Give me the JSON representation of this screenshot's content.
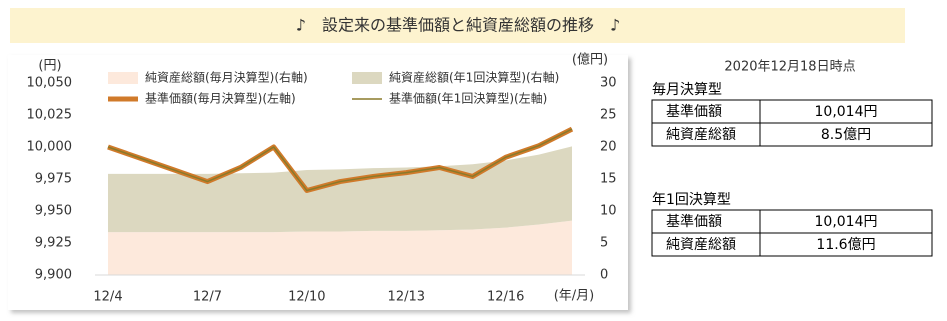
{
  "chart_data": {
    "type": "line",
    "title": "♪　設定来の基準価額と純資産総額の推移　♪",
    "categories": [
      "12/4",
      null,
      null,
      "12/7",
      null,
      null,
      "12/10",
      null,
      null,
      "12/13",
      null,
      null,
      "12/16",
      null,
      null
    ],
    "xlabel": "(年/月)",
    "ylabel": "(円)",
    "y2label": "(億円)",
    "ylim": [
      9900,
      10050
    ],
    "yticks": [
      {
        "value": 9900,
        "label": "9,900"
      },
      {
        "value": 9925,
        "label": "9,925"
      },
      {
        "value": 9950,
        "label": "9,950"
      },
      {
        "value": 9975,
        "label": "9,975"
      },
      {
        "value": 10000,
        "label": "10,000"
      },
      {
        "value": 10025,
        "label": "10,025"
      },
      {
        "value": 10050,
        "label": "10,050"
      }
    ],
    "y2lim": [
      0,
      30
    ],
    "y2ticks": [
      0,
      5,
      10,
      15,
      20,
      25,
      30
    ],
    "stacked_areas": true,
    "grid": false,
    "series": [
      {
        "name": "純資産総額(毎月決算型)(右軸)",
        "type": "area",
        "axis": "y2",
        "color": "#fde9dc",
        "values": [
          6.7,
          6.7,
          6.7,
          6.7,
          6.7,
          6.7,
          6.8,
          6.8,
          6.9,
          6.9,
          7.0,
          7.1,
          7.4,
          7.9,
          8.5
        ]
      },
      {
        "name": "純資産総額(年1回決算型)(右軸)",
        "type": "area",
        "axis": "y2",
        "color": "#dcd8c0",
        "values": [
          9.1,
          9.1,
          9.1,
          9.1,
          9.2,
          9.3,
          9.6,
          9.7,
          9.8,
          9.9,
          10.0,
          10.2,
          10.5,
          10.9,
          11.6
        ]
      },
      {
        "name": "基準価額(毎月決算型)(左軸)",
        "type": "line",
        "color": "#d07a2a",
        "width": 5,
        "values": [
          10000,
          9991,
          9982,
          9973,
          9984,
          10000,
          9966,
          9973,
          9977,
          9980,
          9984,
          9977,
          9992,
          10001,
          10014
        ]
      },
      {
        "name": "基準価額(年1回決算型)(左軸)",
        "type": "line",
        "color": "#8a7a2a",
        "width": 1.5,
        "values": [
          10000,
          9991,
          9982,
          9973,
          9984,
          10000,
          9966,
          9973,
          9977,
          9980,
          9984,
          9977,
          9992,
          10001,
          10014
        ]
      }
    ]
  },
  "summary": {
    "as_of": "2020年12月18日時点",
    "funds": [
      {
        "name": "毎月決算型",
        "rows": [
          [
            "基準価額",
            "10,014円"
          ],
          [
            "純資産総額",
            "8.5億円"
          ]
        ]
      },
      {
        "name": "年1回決算型",
        "rows": [
          [
            "基準価額",
            "10,014円"
          ],
          [
            "純資産総額",
            "11.6億円"
          ]
        ]
      }
    ]
  }
}
